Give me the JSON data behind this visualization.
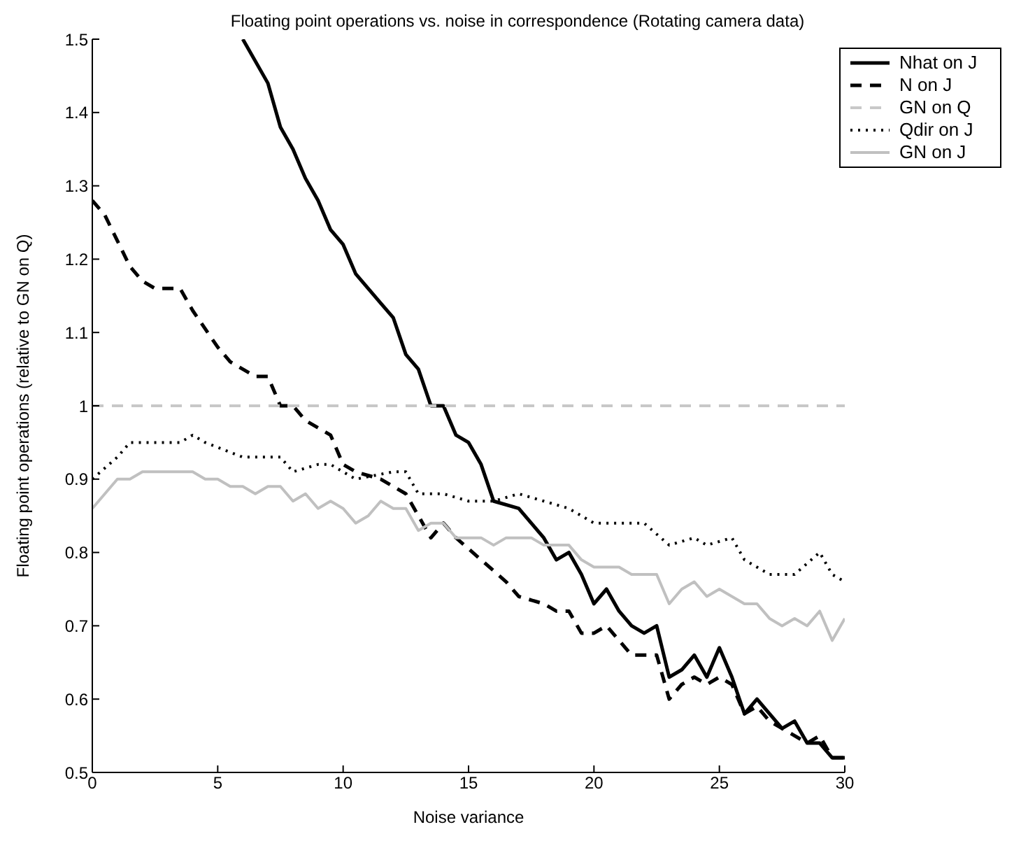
{
  "chart_data": {
    "type": "line",
    "title": "Floating point operations vs. noise in correspondence (Rotating camera data)",
    "xlabel": "Noise variance",
    "ylabel": "Floating point operations (relative to GN on Q)",
    "xlim": [
      0,
      30
    ],
    "xticks": [
      0,
      5,
      10,
      15,
      20,
      25,
      30
    ],
    "ylim": [
      0.5,
      1.5
    ],
    "yticks": [
      0.5,
      0.6,
      0.7,
      0.8,
      0.9,
      1,
      1.1,
      1.2,
      1.3,
      1.4,
      1.5
    ],
    "legend": "top right",
    "series": [
      {
        "name": "Nhat on J",
        "color": "#000000",
        "line_style": "solid",
        "x": [
          6,
          7,
          7.5,
          8,
          8.5,
          9,
          9.5,
          10,
          10.5,
          11,
          11.5,
          12,
          12.5,
          13,
          13.5,
          14,
          14.5,
          15,
          15.5,
          16,
          17,
          17.5,
          18,
          18.5,
          19,
          19.5,
          20,
          20.5,
          21,
          21.5,
          22,
          22.5,
          23,
          23.5,
          24,
          24.5,
          25,
          25.5,
          26,
          26.5,
          27,
          27.5,
          28,
          28.5,
          29,
          29.5,
          30
        ],
        "values": [
          1.5,
          1.44,
          1.38,
          1.35,
          1.31,
          1.28,
          1.24,
          1.22,
          1.18,
          1.16,
          1.14,
          1.12,
          1.07,
          1.05,
          1.0,
          1.0,
          0.96,
          0.95,
          0.92,
          0.87,
          0.86,
          0.84,
          0.82,
          0.79,
          0.8,
          0.77,
          0.73,
          0.75,
          0.72,
          0.7,
          0.69,
          0.7,
          0.63,
          0.64,
          0.66,
          0.63,
          0.67,
          0.63,
          0.58,
          0.6,
          0.58,
          0.56,
          0.57,
          0.54,
          0.54,
          0.52,
          0.52
        ]
      },
      {
        "name": "N on J",
        "color": "#000000",
        "line_style": "dashed",
        "x": [
          0,
          0.5,
          1.5,
          2,
          2.5,
          3.5,
          4,
          5,
          5.5,
          6.5,
          7,
          7.5,
          8,
          8.5,
          9.5,
          10,
          10.5,
          11.5,
          12,
          12.5,
          13,
          13.5,
          14,
          14.5,
          15.5,
          16.5,
          17,
          18,
          18.5,
          19,
          19.5,
          20,
          20.5,
          21,
          21.5,
          22.5,
          23,
          23.5,
          24,
          24.5,
          25,
          25.5,
          26,
          26.5,
          27,
          27.5,
          28.5,
          29,
          29.5,
          30
        ],
        "values": [
          1.28,
          1.26,
          1.19,
          1.17,
          1.16,
          1.16,
          1.13,
          1.08,
          1.06,
          1.04,
          1.04,
          1.0,
          1.0,
          0.98,
          0.96,
          0.92,
          0.91,
          0.9,
          0.89,
          0.88,
          0.85,
          0.82,
          0.84,
          0.82,
          0.79,
          0.76,
          0.74,
          0.73,
          0.72,
          0.72,
          0.69,
          0.69,
          0.7,
          0.68,
          0.66,
          0.66,
          0.6,
          0.62,
          0.63,
          0.62,
          0.63,
          0.62,
          0.58,
          0.59,
          0.57,
          0.56,
          0.54,
          0.55,
          0.52,
          0.52
        ]
      },
      {
        "name": "GN on Q",
        "color": "#c8c8c8",
        "line_style": "dashed",
        "x": [
          0,
          30
        ],
        "values": [
          1,
          1
        ]
      },
      {
        "name": "Qdir on J",
        "color": "#000000",
        "line_style": "dotted",
        "x": [
          0,
          1,
          1.5,
          2.5,
          3.5,
          4,
          4.5,
          6,
          6.5,
          7.5,
          8,
          9,
          9.5,
          10.5,
          12,
          12.5,
          13,
          14,
          15,
          16,
          17,
          18,
          19,
          20,
          21,
          22,
          23,
          24,
          24.5,
          25.5,
          26,
          27,
          28,
          29,
          29.5,
          30
        ],
        "values": [
          0.9,
          0.93,
          0.95,
          0.95,
          0.95,
          0.96,
          0.95,
          0.93,
          0.93,
          0.93,
          0.91,
          0.92,
          0.92,
          0.9,
          0.91,
          0.91,
          0.88,
          0.88,
          0.87,
          0.87,
          0.88,
          0.87,
          0.86,
          0.84,
          0.84,
          0.84,
          0.81,
          0.82,
          0.81,
          0.82,
          0.79,
          0.77,
          0.77,
          0.8,
          0.77,
          0.76
        ]
      },
      {
        "name": "GN on J",
        "color": "#c0c0c0",
        "line_style": "solid",
        "x": [
          0,
          0.5,
          1,
          1.5,
          2,
          2.5,
          3,
          3.5,
          4,
          4.5,
          5,
          5.5,
          6,
          6.5,
          7,
          7.5,
          8,
          8.5,
          9,
          9.5,
          10,
          10.5,
          11,
          11.5,
          12,
          12.5,
          13,
          13.5,
          14,
          14.5,
          15,
          15.5,
          16,
          16.5,
          17,
          17.5,
          18,
          18.5,
          19,
          19.5,
          20,
          20.5,
          21,
          21.5,
          22,
          22.5,
          23,
          23.5,
          24,
          24.5,
          25,
          25.5,
          26,
          26.5,
          27,
          27.5,
          28,
          28.5,
          29,
          29.5,
          30
        ],
        "values": [
          0.86,
          0.88,
          0.9,
          0.9,
          0.91,
          0.91,
          0.91,
          0.91,
          0.91,
          0.9,
          0.9,
          0.89,
          0.89,
          0.88,
          0.89,
          0.89,
          0.87,
          0.88,
          0.86,
          0.87,
          0.86,
          0.84,
          0.85,
          0.87,
          0.86,
          0.86,
          0.83,
          0.84,
          0.84,
          0.82,
          0.82,
          0.82,
          0.81,
          0.82,
          0.82,
          0.82,
          0.81,
          0.81,
          0.81,
          0.79,
          0.78,
          0.78,
          0.78,
          0.77,
          0.77,
          0.77,
          0.73,
          0.75,
          0.76,
          0.74,
          0.75,
          0.74,
          0.73,
          0.73,
          0.71,
          0.7,
          0.71,
          0.7,
          0.72,
          0.68,
          0.71
        ]
      }
    ]
  }
}
